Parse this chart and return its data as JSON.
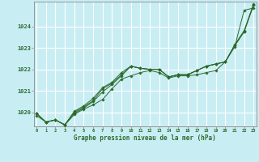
{
  "title": "Graphe pression niveau de la mer (hPa)",
  "background_color": "#c8eef4",
  "grid_color": "#ffffff",
  "line_color": "#2d6a2d",
  "marker_color": "#2d6a2d",
  "xlim": [
    -0.3,
    23.3
  ],
  "ylim": [
    1019.35,
    1025.15
  ],
  "yticks": [
    1020,
    1021,
    1022,
    1023,
    1024
  ],
  "xticks": [
    0,
    1,
    2,
    3,
    4,
    5,
    6,
    7,
    8,
    9,
    10,
    11,
    12,
    13,
    14,
    15,
    16,
    17,
    18,
    19,
    20,
    21,
    22,
    23
  ],
  "series": [
    [
      1019.85,
      1019.55,
      1019.65,
      1019.42,
      1019.9,
      1020.15,
      1020.35,
      1020.6,
      1021.1,
      1021.55,
      1021.7,
      1021.85,
      1021.95,
      1021.85,
      1021.6,
      1021.7,
      1021.7,
      1021.75,
      1021.85,
      1021.95,
      1022.35,
      1023.05,
      1024.75,
      1024.85
    ],
    [
      1019.95,
      1019.55,
      1019.65,
      1019.42,
      1019.95,
      1020.2,
      1020.5,
      1020.95,
      1021.3,
      1021.7,
      1022.15,
      1022.05,
      1022.0,
      1022.0,
      1021.65,
      1021.75,
      1021.75,
      1021.95,
      1022.15,
      1022.25,
      1022.35,
      1023.1,
      1023.75,
      1025.0
    ],
    [
      1019.95,
      1019.55,
      1019.65,
      1019.42,
      1020.0,
      1020.25,
      1020.55,
      1021.1,
      1021.35,
      1021.75,
      1022.15,
      1022.05,
      1022.0,
      1022.0,
      1021.65,
      1021.75,
      1021.75,
      1021.95,
      1022.15,
      1022.25,
      1022.35,
      1023.1,
      1023.75,
      1025.0
    ],
    [
      1019.95,
      1019.55,
      1019.65,
      1019.42,
      1020.05,
      1020.3,
      1020.65,
      1021.15,
      1021.4,
      1021.85,
      1022.15,
      1022.05,
      1022.0,
      1022.0,
      1021.65,
      1021.75,
      1021.75,
      1021.95,
      1022.15,
      1022.25,
      1022.35,
      1023.15,
      1023.8,
      1025.05
    ]
  ]
}
